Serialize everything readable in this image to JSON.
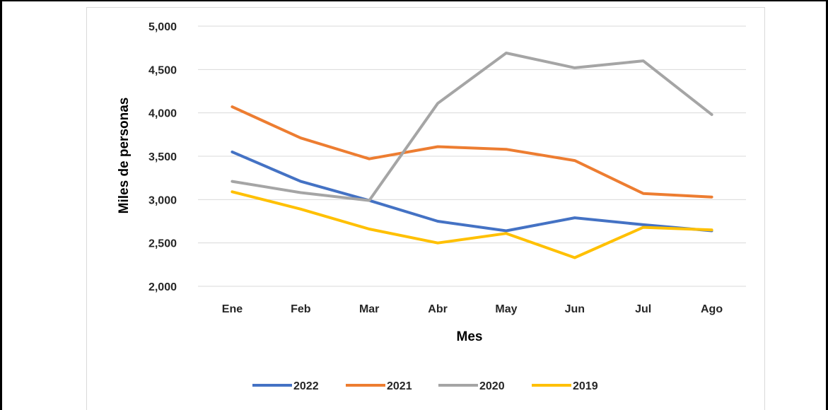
{
  "chart_data": {
    "type": "line",
    "title": "",
    "xlabel": "Mes",
    "ylabel": "Miles de personas",
    "categories": [
      "Ene",
      "Feb",
      "Mar",
      "Abr",
      "May",
      "Jun",
      "Jul",
      "Ago"
    ],
    "ylim": [
      2000,
      5000
    ],
    "yticks": [
      2000,
      2500,
      3000,
      3500,
      4000,
      4500,
      5000
    ],
    "ytick_labels": [
      "2,000",
      "2,500",
      "3,000",
      "3,500",
      "4,000",
      "4,500",
      "5,000"
    ],
    "grid": true,
    "legend_position": "bottom",
    "series": [
      {
        "name": "2022",
        "color": "#4472c4",
        "values": [
          3550,
          3210,
          2990,
          2750,
          2640,
          2790,
          2710,
          2640
        ]
      },
      {
        "name": "2021",
        "color": "#ed7d31",
        "values": [
          4070,
          3710,
          3470,
          3610,
          3580,
          3450,
          3070,
          3030
        ]
      },
      {
        "name": "2020",
        "color": "#a5a5a5",
        "values": [
          3210,
          3080,
          2990,
          4110,
          4690,
          4520,
          4600,
          3980
        ]
      },
      {
        "name": "2019",
        "color": "#ffc000",
        "values": [
          3090,
          2890,
          2660,
          2500,
          2610,
          2330,
          2680,
          2650
        ]
      }
    ]
  }
}
